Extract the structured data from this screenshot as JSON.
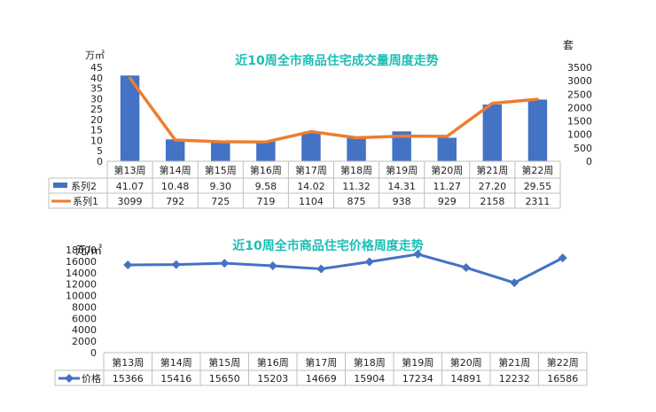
{
  "chart_data": [
    {
      "type": "bar",
      "title": "近10周全市商品住宅成交量周度走势",
      "categories": [
        "第13周",
        "第14周",
        "第15周",
        "第16周",
        "第17周",
        "第18周",
        "第19周",
        "第20周",
        "第21周",
        "第22周"
      ],
      "y_left_unit": "万㎡",
      "y_right_unit": "套",
      "y_left_range": [
        0,
        45
      ],
      "y_left_ticks": [
        0,
        5,
        10,
        15,
        20,
        25,
        30,
        35,
        40,
        45
      ],
      "y_right_range": [
        0,
        3500
      ],
      "y_right_ticks": [
        0,
        500,
        1000,
        1500,
        2000,
        2500,
        3000,
        3500
      ],
      "grid": false,
      "legend": "data-table",
      "series": [
        {
          "name": "系列2",
          "type": "bar",
          "axis": "left",
          "color": "#4472C4",
          "values": [
            41.07,
            10.48,
            9.3,
            9.58,
            14.02,
            11.32,
            14.31,
            11.27,
            27.2,
            29.55
          ],
          "labels": [
            "41.07",
            "10.48",
            "9.30",
            "9.58",
            "14.02",
            "11.32",
            "14.31",
            "11.27",
            "27.20",
            "29.55"
          ]
        },
        {
          "name": "系列1",
          "type": "line",
          "axis": "right",
          "color": "#ED7D31",
          "values": [
            3099,
            792,
            725,
            719,
            1104,
            875,
            938,
            929,
            2158,
            2311
          ],
          "labels": [
            "3099",
            "792",
            "725",
            "719",
            "1104",
            "875",
            "938",
            "929",
            "2158",
            "2311"
          ]
        }
      ]
    },
    {
      "type": "line",
      "title": "近10周全市商品住宅价格周度走势",
      "categories": [
        "第13周",
        "第14周",
        "第15周",
        "第16周",
        "第17周",
        "第18周",
        "第19周",
        "第20周",
        "第21周",
        "第22周"
      ],
      "y_left_unit": "元/㎡",
      "y_range": [
        0,
        18000
      ],
      "y_ticks": [
        0,
        2000,
        4000,
        6000,
        8000,
        10000,
        12000,
        14000,
        16000,
        18000
      ],
      "grid": false,
      "legend": "data-table",
      "series": [
        {
          "name": "价格",
          "type": "line",
          "color": "#4472C4",
          "values": [
            15366,
            15416,
            15650,
            15203,
            14669,
            15904,
            17234,
            14891,
            12232,
            16586
          ],
          "labels": [
            "15366",
            "15416",
            "15650",
            "15203",
            "14669",
            "15904",
            "17234",
            "14891",
            "12232",
            "16586"
          ]
        }
      ]
    }
  ]
}
